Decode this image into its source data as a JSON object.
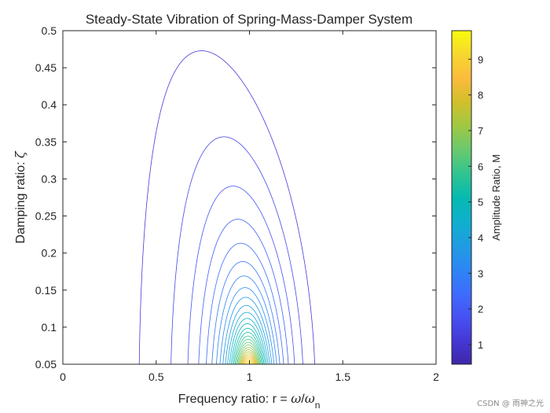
{
  "chart_data": {
    "type": "contour",
    "title": "Steady-State Vibration of Spring-Mass-Damper System",
    "xlabel": {
      "prefix": "Frequency ratio: r = ",
      "omega": "ω",
      "slash": "/",
      "sub": "n"
    },
    "ylabel": {
      "text": "Damping ratio: ",
      "symbol": "ζ"
    },
    "function": "M = 1 / sqrt((1 - r^2)^2 + (2*zeta*r)^2)",
    "xlim": [
      0,
      2
    ],
    "ylim": [
      0.05,
      0.5
    ],
    "xticks": [
      "0",
      "0.5",
      "1",
      "1.5",
      "2"
    ],
    "xtick_values": [
      0,
      0.5,
      1,
      1.5,
      2
    ],
    "yticks": [
      "0.05",
      "0.1",
      "0.15",
      "0.2",
      "0.25",
      "0.3",
      "0.35",
      "0.4",
      "0.45",
      "0.5"
    ],
    "ytick_values": [
      0.05,
      0.1,
      0.15,
      0.2,
      0.25,
      0.3,
      0.35,
      0.4,
      0.45,
      0.5
    ],
    "contour_levels_start": 1.2,
    "contour_levels_step": 0.3,
    "contour_levels_end": 9.6,
    "colorbar": {
      "label": "Amplitude Ratio, M",
      "ticks": [
        "1",
        "2",
        "3",
        "4",
        "5",
        "6",
        "7",
        "8",
        "9"
      ],
      "tick_values": [
        1,
        2,
        3,
        4,
        5,
        6,
        7,
        8,
        9
      ],
      "range": [
        0.45,
        9.8
      ],
      "colormap": "parula"
    }
  },
  "watermark": "CSDN @ 雨神之光",
  "colors": {
    "parula": [
      "#3e26a8",
      "#4538d6",
      "#4752f4",
      "#3d6dfd",
      "#2c87f4",
      "#1f9ce2",
      "#0fb0cd",
      "#06bab0",
      "#31c490",
      "#69c96e",
      "#9fc843",
      "#d1bf2b",
      "#fbbb3c",
      "#f7d72f",
      "#f9fb0e"
    ]
  }
}
